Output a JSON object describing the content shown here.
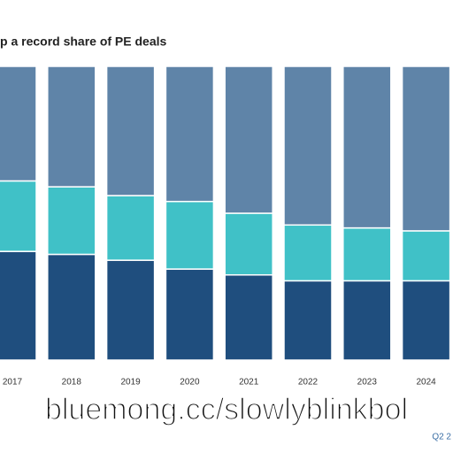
{
  "chart_data": {
    "type": "stacked_bar",
    "title": "p a record share of PE deals",
    "categories": [
      "2017",
      "2018",
      "2019",
      "2020",
      "2021",
      "2022",
      "2023",
      "2024"
    ],
    "series": [
      {
        "color": "#1f4e7e",
        "values": [
          37,
          36,
          34,
          31,
          29,
          27,
          27,
          27
        ]
      },
      {
        "color": "#40c1c7",
        "values": [
          24,
          23,
          22,
          23,
          21,
          19,
          18,
          17
        ]
      },
      {
        "color": "#5f84a8",
        "values": [
          39,
          41,
          44,
          46,
          50,
          54,
          55,
          56
        ]
      }
    ],
    "ylim": [
      0,
      100
    ],
    "watermark": "bluemong.cc/slowlyblinkbol",
    "source": "Q2 2"
  }
}
